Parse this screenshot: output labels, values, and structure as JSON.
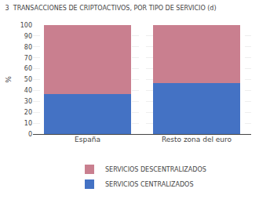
{
  "chart_data": {
    "type": "bar",
    "stacked": true,
    "title": "3  TRANSACCIONES DE CRIPTOACTIVOS, POR TIPO DE SERVICIO (d)",
    "ylabel": "%",
    "categories": [
      "España",
      "Resto zona del euro"
    ],
    "series": [
      {
        "name": "SERVICIOS CENTRALIZADOS",
        "color": "#4472c4",
        "values": [
          37,
          47
        ]
      },
      {
        "name": "SERVICIOS DESCENTRALIZADOS",
        "color": "#c97f8f",
        "values": [
          63,
          53
        ]
      }
    ],
    "ylim": [
      0,
      100
    ],
    "yticks": [
      0,
      10,
      20,
      30,
      40,
      50,
      60,
      70,
      80,
      90,
      100
    ],
    "grid": true,
    "legend": "bottom"
  }
}
